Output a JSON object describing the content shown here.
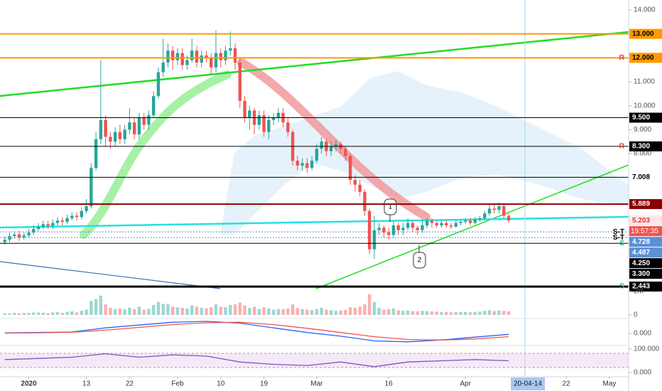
{
  "chart_data": [
    {
      "type": "candlestick",
      "xlim": [
        "2019-12-26",
        "2020-05-05"
      ],
      "ylim": [
        2.357,
        14.416
      ],
      "up_color": "#26a69a",
      "down_color": "#ef5350",
      "x": [
        "2019-12-27",
        "2019-12-28",
        "2019-12-29",
        "2019-12-30",
        "2019-12-31",
        "2020-01-01",
        "2020-01-02",
        "2020-01-03",
        "2020-01-04",
        "2020-01-05",
        "2020-01-06",
        "2020-01-07",
        "2020-01-08",
        "2020-01-09",
        "2020-01-10",
        "2020-01-11",
        "2020-01-12",
        "2020-01-13",
        "2020-01-14",
        "2020-01-15",
        "2020-01-16",
        "2020-01-17",
        "2020-01-18",
        "2020-01-19",
        "2020-01-20",
        "2020-01-21",
        "2020-01-22",
        "2020-01-23",
        "2020-01-24",
        "2020-01-25",
        "2020-01-26",
        "2020-01-27",
        "2020-01-28",
        "2020-01-29",
        "2020-01-30",
        "2020-01-31",
        "2020-02-01",
        "2020-02-02",
        "2020-02-03",
        "2020-02-04",
        "2020-02-05",
        "2020-02-06",
        "2020-02-07",
        "2020-02-08",
        "2020-02-09",
        "2020-02-10",
        "2020-02-11",
        "2020-02-12",
        "2020-02-13",
        "2020-02-14",
        "2020-02-15",
        "2020-02-16",
        "2020-02-17",
        "2020-02-18",
        "2020-02-19",
        "2020-02-20",
        "2020-02-21",
        "2020-02-22",
        "2020-02-23",
        "2020-02-24",
        "2020-02-25",
        "2020-02-26",
        "2020-02-27",
        "2020-02-28",
        "2020-02-29",
        "2020-03-01",
        "2020-03-02",
        "2020-03-03",
        "2020-03-04",
        "2020-03-05",
        "2020-03-06",
        "2020-03-07",
        "2020-03-08",
        "2020-03-09",
        "2020-03-10",
        "2020-03-11",
        "2020-03-12",
        "2020-03-13",
        "2020-03-14",
        "2020-03-15",
        "2020-03-16",
        "2020-03-17",
        "2020-03-18",
        "2020-03-19",
        "2020-03-20",
        "2020-03-21",
        "2020-03-22",
        "2020-03-23",
        "2020-03-24",
        "2020-03-25",
        "2020-03-26",
        "2020-03-27",
        "2020-03-28",
        "2020-03-29",
        "2020-03-30",
        "2020-03-31",
        "2020-04-01",
        "2020-04-02",
        "2020-04-03",
        "2020-04-04",
        "2020-04-05",
        "2020-04-06",
        "2020-04-07",
        "2020-04-08",
        "2020-04-09",
        "2020-04-10"
      ],
      "open": [
        4.3,
        4.4,
        4.55,
        4.62,
        4.5,
        4.58,
        4.7,
        4.85,
        4.95,
        5.05,
        4.98,
        5.1,
        5.2,
        5.15,
        5.3,
        5.4,
        5.35,
        5.6,
        5.8,
        7.4,
        8.6,
        9.4,
        8.7,
        8.5,
        8.9,
        8.6,
        9.0,
        9.3,
        8.8,
        9.5,
        9.2,
        9.6,
        10.4,
        11.4,
        11.8,
        12.3,
        11.9,
        12.2,
        11.7,
        11.9,
        12.3,
        11.8,
        12.1,
        12.0,
        11.6,
        12.2,
        11.9,
        12.3,
        12.4,
        11.8,
        10.2,
        9.5,
        9.8,
        9.2,
        9.6,
        8.9,
        9.4,
        9.5,
        9.7,
        9.3,
        8.9,
        7.7,
        7.5,
        7.6,
        7.4,
        7.7,
        8.2,
        8.5,
        8.1,
        8.3,
        8.4,
        8.2,
        7.9,
        6.9,
        6.7,
        6.4,
        5.6,
        4.0,
        4.8,
        4.9,
        4.7,
        4.6,
        5.0,
        4.8,
        4.9,
        5.1,
        4.9,
        4.8,
        5.0,
        5.2,
        5.1,
        5.0,
        5.1,
        5.0,
        4.95,
        5.1,
        5.15,
        5.2,
        5.1,
        5.25,
        5.3,
        5.5,
        5.7,
        5.65,
        5.8,
        5.4
      ],
      "high": [
        4.55,
        4.7,
        4.75,
        4.75,
        4.7,
        4.85,
        5.0,
        5.1,
        5.2,
        5.2,
        5.25,
        5.35,
        5.35,
        5.45,
        5.55,
        5.55,
        5.75,
        6.1,
        7.6,
        8.9,
        11.9,
        9.6,
        8.9,
        9.1,
        9.2,
        9.2,
        9.9,
        9.5,
        9.7,
        9.7,
        9.8,
        10.6,
        11.6,
        12.8,
        12.6,
        12.5,
        12.4,
        12.4,
        12.1,
        12.8,
        12.5,
        12.3,
        12.3,
        12.2,
        13.15,
        12.4,
        12.5,
        13.1,
        12.6,
        12.0,
        10.4,
        10.0,
        9.9,
        9.8,
        9.8,
        9.6,
        9.7,
        9.9,
        9.9,
        9.5,
        9.0,
        7.9,
        7.8,
        7.8,
        7.9,
        8.4,
        8.7,
        8.6,
        8.5,
        8.6,
        8.5,
        8.3,
        8.0,
        7.1,
        6.9,
        6.5,
        5.7,
        5.4,
        5.1,
        5.0,
        4.9,
        5.2,
        5.1,
        5.1,
        5.3,
        5.2,
        5.0,
        5.2,
        5.3,
        5.3,
        5.2,
        5.2,
        5.2,
        5.1,
        5.2,
        5.25,
        5.3,
        5.3,
        5.35,
        5.4,
        5.6,
        5.9,
        5.9,
        5.95,
        5.9,
        5.5
      ],
      "low": [
        4.2,
        4.3,
        4.45,
        4.35,
        4.4,
        4.5,
        4.6,
        4.75,
        4.85,
        4.85,
        4.85,
        5.0,
        5.0,
        5.05,
        5.2,
        5.2,
        5.25,
        5.5,
        5.7,
        7.3,
        8.4,
        8.3,
        8.2,
        8.3,
        8.4,
        8.4,
        8.8,
        8.6,
        8.6,
        9.0,
        9.0,
        9.5,
        10.3,
        11.2,
        11.6,
        11.5,
        11.7,
        11.5,
        11.5,
        11.8,
        11.6,
        11.6,
        11.8,
        11.3,
        11.4,
        11.6,
        11.7,
        12.1,
        11.5,
        9.9,
        9.3,
        9.0,
        8.8,
        9.0,
        8.7,
        8.6,
        9.2,
        9.3,
        9.1,
        8.7,
        7.5,
        7.3,
        7.3,
        7.2,
        7.3,
        7.6,
        8.0,
        7.9,
        7.9,
        8.1,
        8.0,
        7.7,
        6.7,
        6.4,
        6.2,
        5.4,
        3.8,
        3.6,
        4.6,
        4.5,
        4.4,
        4.5,
        4.6,
        4.6,
        4.8,
        4.7,
        4.6,
        4.7,
        4.9,
        4.9,
        4.9,
        4.9,
        4.9,
        4.85,
        4.9,
        5.0,
        5.05,
        5.0,
        5.05,
        5.15,
        5.2,
        5.4,
        5.5,
        5.5,
        5.3,
        5.1
      ],
      "close": [
        4.4,
        4.55,
        4.62,
        4.5,
        4.58,
        4.7,
        4.85,
        4.95,
        5.05,
        4.98,
        5.1,
        5.2,
        5.15,
        5.3,
        5.4,
        5.35,
        5.6,
        5.8,
        7.4,
        8.6,
        9.4,
        8.7,
        8.5,
        8.9,
        8.6,
        9.0,
        9.3,
        8.8,
        9.5,
        9.2,
        9.6,
        10.4,
        11.4,
        11.8,
        12.3,
        11.9,
        12.2,
        11.7,
        11.9,
        12.3,
        11.8,
        12.1,
        12.0,
        11.6,
        12.2,
        11.9,
        12.3,
        12.4,
        11.8,
        10.2,
        9.5,
        9.8,
        9.2,
        9.6,
        8.9,
        9.4,
        9.5,
        9.7,
        9.3,
        8.9,
        7.7,
        7.5,
        7.6,
        7.4,
        7.7,
        8.2,
        8.5,
        8.1,
        8.3,
        8.4,
        8.2,
        7.9,
        6.9,
        6.7,
        6.4,
        5.6,
        4.0,
        4.8,
        4.9,
        4.7,
        4.6,
        5.0,
        4.8,
        4.9,
        5.1,
        4.9,
        4.8,
        5.0,
        5.2,
        5.1,
        5.0,
        5.1,
        5.0,
        4.95,
        5.1,
        5.15,
        5.2,
        5.1,
        5.25,
        5.3,
        5.5,
        5.7,
        5.65,
        5.8,
        5.4,
        5.2
      ],
      "yticks": [
        {
          "value": 14,
          "label": "14.000"
        },
        {
          "value": 11,
          "label": "11.000"
        },
        {
          "value": 10,
          "label": "10.000"
        },
        {
          "value": 9,
          "label": "9.000"
        },
        {
          "value": 8,
          "label": "8.000"
        }
      ],
      "levels": [
        {
          "value": 13,
          "label": "13.000",
          "color": "#ff9800",
          "text_color": "#000000",
          "line": "thick"
        },
        {
          "value": 12,
          "label": "12.000",
          "color": "#ff9800",
          "text_color": "#000000",
          "line": "thick",
          "tag": "R",
          "tag_color": "#e53935"
        },
        {
          "value": 9.5,
          "label": "9.500",
          "color": "#000000",
          "text_color": "#ffffff",
          "line": "thin"
        },
        {
          "value": 8.3,
          "label": "8.300",
          "color": "#000000",
          "text_color": "#ffffff",
          "line": "thin",
          "tag": "R",
          "tag_color": "#e53935"
        },
        {
          "value": 7.008,
          "label": "7.008",
          "color": "#ffffff",
          "text_color": "#000000",
          "line": "thin"
        },
        {
          "value": 5.889,
          "label": "5.889",
          "color": "#8b0000",
          "text_color": "#ffffff",
          "line": "thick"
        },
        {
          "value": 5.203,
          "label": "5.203",
          "color": "#fde7e7",
          "text_color": "#e53935",
          "line": "none",
          "countdown": "19:57:35",
          "countdown_color": "#ef5350"
        },
        {
          "value": 4.728,
          "label": "4.728",
          "color": "#5b8fd6",
          "text_color": "#ffffff",
          "line": "dotted",
          "tag": "S-T",
          "tag_color": "#000000"
        },
        {
          "value": 4.487,
          "label": "4.487",
          "color": "#5b8fd6",
          "text_color": "#ffffff",
          "line": "dotted",
          "tag": "S-T",
          "tag_color": "#000000"
        },
        {
          "value": 4.25,
          "label": "4.250",
          "color": "#000000",
          "text_color": "#ffffff",
          "line": "thin",
          "tag": "S",
          "tag_color": "#26a69a"
        },
        {
          "value": 3.3,
          "label": "3.300",
          "color": "#000000",
          "text_color": "#ffffff",
          "line": "none"
        },
        {
          "value": 2.443,
          "label": "2.443",
          "color": "#000000",
          "text_color": "#ffffff",
          "line": "heavy",
          "tag": "S",
          "tag_color": "#26a69a"
        }
      ],
      "xticks": [
        {
          "value": "2020-01-01",
          "label": "2020"
        },
        {
          "value": "2020-01-13",
          "label": "13"
        },
        {
          "value": "2020-01-22",
          "label": "22"
        },
        {
          "value": "2020-02-01",
          "label": "Feb"
        },
        {
          "value": "2020-02-10",
          "label": "10"
        },
        {
          "value": "2020-02-19",
          "label": "19"
        },
        {
          "value": "2020-03-01",
          "label": "Mar"
        },
        {
          "value": "2020-03-16",
          "label": "16"
        },
        {
          "value": "2020-04-01",
          "label": "Apr"
        },
        {
          "value": "2020-04-22",
          "label": "22"
        },
        {
          "value": "2020-05-01",
          "label": "May"
        }
      ],
      "crosshair": {
        "value": "2020-04-14",
        "label": "20-04-14"
      },
      "callouts": [
        "1",
        "2"
      ]
    },
    {
      "type": "bar",
      "ylim": [
        0,
        2300000
      ],
      "yticks": [
        {
          "value": 2000000,
          "label": "2M"
        },
        0
      ],
      "values": [
        150000,
        120000,
        180000,
        140000,
        160000,
        170000,
        200000,
        220000,
        190000,
        150000,
        210000,
        240000,
        180000,
        260000,
        300000,
        220000,
        350000,
        450000,
        1200000,
        1350000,
        1650000,
        900000,
        600000,
        500000,
        550000,
        480000,
        620000,
        500000,
        700000,
        450000,
        520000,
        850000,
        1100000,
        950000,
        900000,
        700000,
        650000,
        600000,
        550000,
        800000,
        700000,
        600000,
        550000,
        650000,
        900000,
        700000,
        650000,
        850000,
        900000,
        1050000,
        800000,
        600000,
        700000,
        500000,
        650000,
        550000,
        450000,
        500000,
        480000,
        550000,
        900000,
        600000,
        500000,
        450000,
        400000,
        500000,
        600000,
        450000,
        400000,
        350000,
        380000,
        420000,
        650000,
        600000,
        700000,
        900000,
        1750000,
        1100000,
        600000,
        450000,
        500000,
        550000,
        400000,
        350000,
        380000,
        330000,
        300000,
        350000,
        320000,
        300000,
        280000,
        260000,
        250000,
        230000,
        270000,
        240000,
        260000,
        230000,
        250000,
        280000,
        350000,
        400000,
        320000,
        380000,
        350000,
        300000
      ]
    },
    {
      "type": "line",
      "ylim": [
        -1.3,
        1.3
      ],
      "yticks": [
        {
          "value": 0,
          "label": "0.000"
        }
      ],
      "x": [
        "2019-12-27",
        "2020-01-03",
        "2020-01-10",
        "2020-01-17",
        "2020-01-24",
        "2020-01-31",
        "2020-02-07",
        "2020-02-14",
        "2020-02-21",
        "2020-02-28",
        "2020-03-06",
        "2020-03-13",
        "2020-03-20",
        "2020-03-27",
        "2020-04-03",
        "2020-04-10"
      ],
      "series": [
        {
          "color": "#2962ff",
          "values": [
            0.05,
            0.1,
            0.15,
            0.6,
            0.9,
            1.2,
            1.3,
            1.1,
            0.6,
            0.1,
            -0.3,
            -0.8,
            -0.9,
            -0.7,
            -0.4,
            -0.1
          ]
        },
        {
          "color": "#ef5350",
          "values": [
            0.03,
            0.07,
            0.12,
            0.35,
            0.65,
            0.95,
            1.15,
            1.2,
            0.95,
            0.55,
            0.1,
            -0.35,
            -0.65,
            -0.72,
            -0.6,
            -0.35
          ]
        }
      ]
    },
    {
      "type": "line",
      "ylim": [
        -18,
        115
      ],
      "yticks": [
        {
          "value": 100,
          "label": "100.000"
        },
        {
          "value": 0,
          "label": "0.000"
        }
      ],
      "x": [
        "2019-12-27",
        "2020-01-03",
        "2020-01-10",
        "2020-01-17",
        "2020-01-24",
        "2020-01-31",
        "2020-02-07",
        "2020-02-14",
        "2020-02-21",
        "2020-02-28",
        "2020-03-06",
        "2020-03-13",
        "2020-03-20",
        "2020-03-27",
        "2020-04-03",
        "2020-04-10"
      ],
      "series": [
        {
          "color": "#7e57c2",
          "values": [
            55,
            60,
            65,
            80,
            65,
            75,
            70,
            45,
            35,
            30,
            45,
            25,
            45,
            50,
            55,
            50
          ]
        }
      ]
    }
  ]
}
